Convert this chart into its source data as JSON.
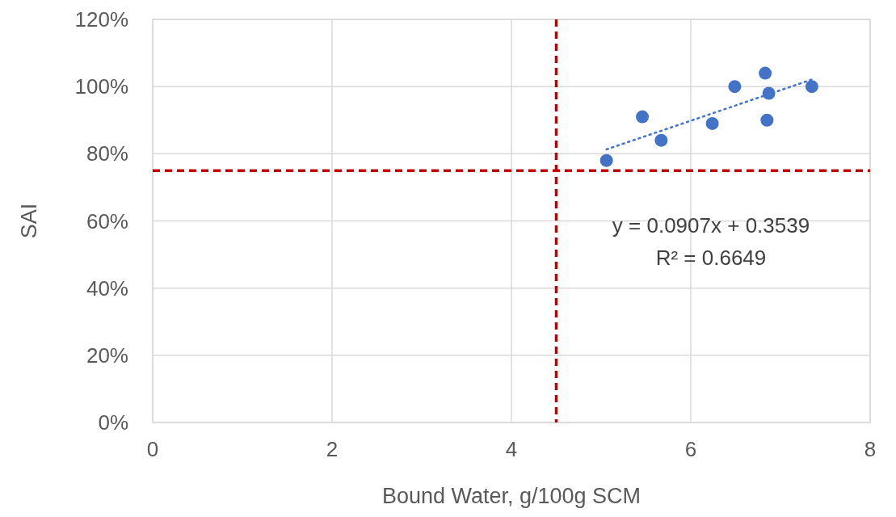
{
  "chart_data": {
    "type": "scatter",
    "xlabel": "Bound Water, g/100g SCM",
    "ylabel": "SAI",
    "xlim": [
      0,
      8
    ],
    "xticks": [
      0,
      2,
      4,
      6,
      8
    ],
    "ylim": [
      0,
      1.2
    ],
    "yticks": [
      {
        "value": 0,
        "label": "0%"
      },
      {
        "value": 0.2,
        "label": "20%"
      },
      {
        "value": 0.4,
        "label": "40%"
      },
      {
        "value": 0.6,
        "label": "60%"
      },
      {
        "value": 0.8,
        "label": "80%"
      },
      {
        "value": 1.0,
        "label": "100%"
      },
      {
        "value": 1.2,
        "label": "120%"
      }
    ],
    "grid": true,
    "marker": "circle",
    "series": [
      {
        "color": "#4472c4",
        "x": [
          5.06,
          5.46,
          5.67,
          6.24,
          6.49,
          6.83,
          6.87,
          6.85,
          7.35
        ],
        "values": [
          0.78,
          0.91,
          0.84,
          0.89,
          1.0,
          1.04,
          0.98,
          0.9,
          1.0
        ]
      },
      {
        "type": "line",
        "color": "#4472c4",
        "line_style": "dotted",
        "marker": "none",
        "x": [
          5.06,
          7.35
        ],
        "values": [
          0.813,
          1.021
        ]
      }
    ],
    "ref_lines": [
      {
        "axis": "x",
        "value": 4.5,
        "color": "#c00000",
        "line_style": "dashed"
      },
      {
        "axis": "y",
        "value": 0.75,
        "color": "#c00000",
        "line_style": "dashed"
      }
    ],
    "annotations": [
      "y = 0.0907x + 0.3539",
      "R² = 0.6649"
    ]
  }
}
